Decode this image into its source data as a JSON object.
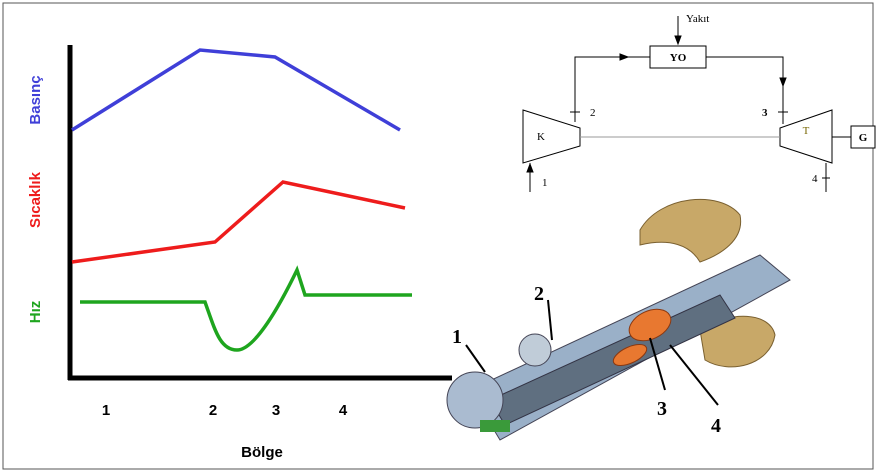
{
  "plot": {
    "y_labels": [
      "Basınç",
      "Sıcaklık",
      "Hız"
    ],
    "x_labels": [
      "1",
      "2",
      "3",
      "4"
    ],
    "x_title": "Bölge"
  },
  "schematic": {
    "fuel": "Yakıt",
    "combustor": "YO",
    "compressor": "K",
    "turbine": "T",
    "generator": "G",
    "stations": [
      "1",
      "2",
      "3",
      "4"
    ]
  },
  "cutaway": {
    "labels": [
      "1",
      "2",
      "3",
      "4"
    ]
  }
}
